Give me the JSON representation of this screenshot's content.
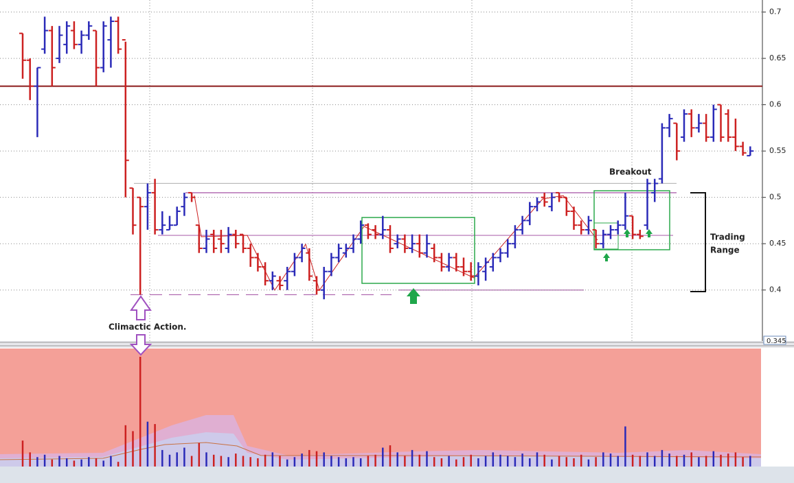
{
  "chart_data": {
    "type": "ohlc",
    "ylim": [
      0.345,
      0.713
    ],
    "yticks": [
      0.4,
      0.45,
      0.5,
      0.55,
      0.6,
      0.65,
      0.7
    ],
    "bottom_label": "0.345",
    "grid": true,
    "up_color": "#2a2ab8",
    "down_color": "#cc2020",
    "ohlc": [
      [
        0.677,
        0.677,
        0.628,
        0.648
      ],
      [
        0.648,
        0.65,
        0.605,
        0.62
      ],
      [
        0.62,
        0.64,
        0.565,
        0.64
      ],
      [
        0.66,
        0.695,
        0.655,
        0.68
      ],
      [
        0.68,
        0.685,
        0.62,
        0.64
      ],
      [
        0.65,
        0.685,
        0.645,
        0.675
      ],
      [
        0.665,
        0.69,
        0.655,
        0.685
      ],
      [
        0.68,
        0.69,
        0.66,
        0.665
      ],
      [
        0.665,
        0.68,
        0.655,
        0.675
      ],
      [
        0.675,
        0.69,
        0.67,
        0.685
      ],
      [
        0.68,
        0.68,
        0.62,
        0.64
      ],
      [
        0.64,
        0.69,
        0.635,
        0.685
      ],
      [
        0.67,
        0.695,
        0.64,
        0.69
      ],
      [
        0.69,
        0.695,
        0.655,
        0.66
      ],
      [
        0.67,
        0.668,
        0.5,
        0.54
      ],
      [
        0.51,
        0.51,
        0.46,
        0.47
      ],
      [
        0.5,
        0.5,
        0.395,
        0.49
      ],
      [
        0.49,
        0.515,
        0.465,
        0.505
      ],
      [
        0.505,
        0.52,
        0.46,
        0.465
      ],
      [
        0.465,
        0.485,
        0.46,
        0.47
      ],
      [
        0.465,
        0.48,
        0.465,
        0.47
      ],
      [
        0.47,
        0.49,
        0.47,
        0.485
      ],
      [
        0.49,
        0.505,
        0.48,
        0.5
      ],
      [
        0.505,
        0.505,
        0.495,
        0.5
      ],
      [
        0.47,
        0.47,
        0.44,
        0.445
      ],
      [
        0.445,
        0.465,
        0.44,
        0.455
      ],
      [
        0.46,
        0.465,
        0.44,
        0.445
      ],
      [
        0.455,
        0.465,
        0.44,
        0.45
      ],
      [
        0.445,
        0.468,
        0.44,
        0.46
      ],
      [
        0.46,
        0.465,
        0.445,
        0.45
      ],
      [
        0.46,
        0.46,
        0.44,
        0.445
      ],
      [
        0.445,
        0.45,
        0.425,
        0.435
      ],
      [
        0.435,
        0.44,
        0.42,
        0.425
      ],
      [
        0.425,
        0.43,
        0.405,
        0.41
      ],
      [
        0.41,
        0.42,
        0.4,
        0.415
      ],
      [
        0.41,
        0.415,
        0.4,
        0.405
      ],
      [
        0.41,
        0.425,
        0.4,
        0.42
      ],
      [
        0.42,
        0.44,
        0.415,
        0.435
      ],
      [
        0.435,
        0.45,
        0.43,
        0.445
      ],
      [
        0.44,
        0.445,
        0.41,
        0.415
      ],
      [
        0.41,
        0.415,
        0.395,
        0.4
      ],
      [
        0.4,
        0.425,
        0.39,
        0.42
      ],
      [
        0.42,
        0.44,
        0.415,
        0.435
      ],
      [
        0.435,
        0.45,
        0.43,
        0.445
      ],
      [
        0.44,
        0.45,
        0.435,
        0.445
      ],
      [
        0.445,
        0.46,
        0.44,
        0.455
      ],
      [
        0.455,
        0.475,
        0.45,
        0.47
      ],
      [
        0.47,
        0.472,
        0.455,
        0.46
      ],
      [
        0.465,
        0.47,
        0.455,
        0.46
      ],
      [
        0.46,
        0.48,
        0.455,
        0.465
      ],
      [
        0.465,
        0.47,
        0.44,
        0.445
      ],
      [
        0.45,
        0.46,
        0.445,
        0.455
      ],
      [
        0.455,
        0.46,
        0.44,
        0.445
      ],
      [
        0.445,
        0.46,
        0.44,
        0.45
      ],
      [
        0.45,
        0.46,
        0.435,
        0.44
      ],
      [
        0.44,
        0.46,
        0.435,
        0.45
      ],
      [
        0.445,
        0.45,
        0.43,
        0.435
      ],
      [
        0.435,
        0.44,
        0.42,
        0.425
      ],
      [
        0.425,
        0.44,
        0.42,
        0.435
      ],
      [
        0.435,
        0.44,
        0.42,
        0.425
      ],
      [
        0.425,
        0.435,
        0.415,
        0.42
      ],
      [
        0.42,
        0.43,
        0.41,
        0.415
      ],
      [
        0.415,
        0.43,
        0.405,
        0.425
      ],
      [
        0.42,
        0.435,
        0.41,
        0.43
      ],
      [
        0.425,
        0.44,
        0.42,
        0.435
      ],
      [
        0.435,
        0.445,
        0.43,
        0.44
      ],
      [
        0.44,
        0.455,
        0.435,
        0.45
      ],
      [
        0.45,
        0.47,
        0.445,
        0.465
      ],
      [
        0.465,
        0.48,
        0.46,
        0.475
      ],
      [
        0.475,
        0.495,
        0.47,
        0.49
      ],
      [
        0.49,
        0.5,
        0.485,
        0.495
      ],
      [
        0.5,
        0.505,
        0.49,
        0.495
      ],
      [
        0.49,
        0.505,
        0.485,
        0.5
      ],
      [
        0.505,
        0.505,
        0.495,
        0.5
      ],
      [
        0.5,
        0.5,
        0.48,
        0.485
      ],
      [
        0.485,
        0.49,
        0.465,
        0.47
      ],
      [
        0.47,
        0.475,
        0.46,
        0.465
      ],
      [
        0.465,
        0.48,
        0.46,
        0.475
      ],
      [
        0.465,
        0.465,
        0.445,
        0.45
      ],
      [
        0.45,
        0.465,
        0.445,
        0.46
      ],
      [
        0.46,
        0.47,
        0.455,
        0.465
      ],
      [
        0.465,
        0.475,
        0.46,
        0.47
      ],
      [
        0.47,
        0.505,
        0.465,
        0.48
      ],
      [
        0.48,
        0.48,
        0.455,
        0.46
      ],
      [
        0.46,
        0.465,
        0.455,
        0.458
      ],
      [
        0.47,
        0.52,
        0.465,
        0.515
      ],
      [
        0.505,
        0.52,
        0.495,
        0.515
      ],
      [
        0.52,
        0.58,
        0.515,
        0.575
      ],
      [
        0.575,
        0.59,
        0.565,
        0.585
      ],
      [
        0.58,
        0.58,
        0.54,
        0.55
      ],
      [
        0.565,
        0.595,
        0.56,
        0.59
      ],
      [
        0.59,
        0.595,
        0.565,
        0.575
      ],
      [
        0.575,
        0.59,
        0.57,
        0.58
      ],
      [
        0.58,
        0.59,
        0.56,
        0.565
      ],
      [
        0.565,
        0.6,
        0.56,
        0.595
      ],
      [
        0.6,
        0.6,
        0.56,
        0.565
      ],
      [
        0.59,
        0.595,
        0.56,
        0.565
      ],
      [
        0.565,
        0.585,
        0.55,
        0.555
      ],
      [
        0.555,
        0.56,
        0.545,
        0.548
      ],
      [
        0.545,
        0.555,
        0.545,
        0.55
      ]
    ],
    "volume_ylim": [
      0,
      100
    ],
    "volume": [
      22,
      12,
      8,
      10,
      6,
      9,
      7,
      5,
      6,
      8,
      7,
      5,
      9,
      4,
      35,
      30,
      93,
      38,
      36,
      14,
      10,
      12,
      16,
      9,
      20,
      12,
      10,
      9,
      8,
      11,
      9,
      8,
      7,
      10,
      12,
      9,
      6,
      8,
      11,
      14,
      13,
      12,
      9,
      8,
      7,
      8,
      7,
      9,
      10,
      16,
      18,
      12,
      9,
      14,
      10,
      13,
      8,
      7,
      9,
      6,
      8,
      10,
      7,
      9,
      12,
      10,
      9,
      8,
      11,
      7,
      12,
      10,
      6,
      9,
      8,
      7,
      10,
      6,
      8,
      12,
      11,
      9,
      34,
      10,
      9,
      12,
      9,
      14,
      11,
      9,
      10,
      12,
      8,
      9,
      13,
      10,
      11,
      12,
      8,
      9
    ],
    "levels": [
      {
        "value": 0.62,
        "color": "#8b1a1a"
      },
      {
        "value": 0.515,
        "color": "#bbbbbb"
      },
      {
        "value": 0.505,
        "color": "#9b3f9b"
      },
      {
        "value": 0.459,
        "color": "#b06ab0"
      },
      {
        "value": 0.4,
        "color": "#b06ab0"
      },
      {
        "value": 0.395,
        "color": "#b06ab0"
      }
    ],
    "annotations": {
      "breakout": "Breakout",
      "climactic": "Climactic Action.",
      "trading_range": [
        "Trading",
        "Range"
      ]
    }
  }
}
